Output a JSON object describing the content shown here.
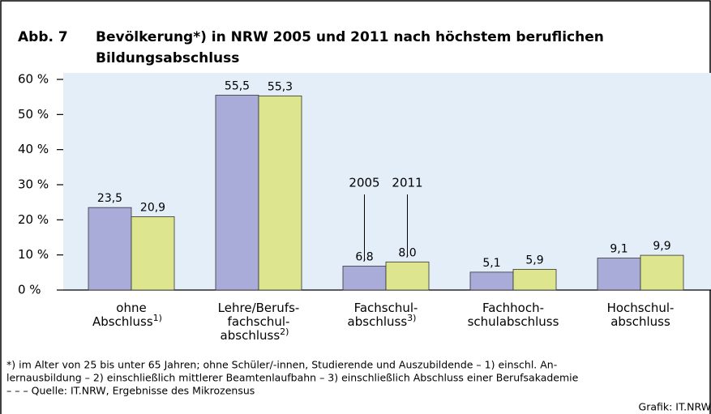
{
  "chart_data": {
    "type": "bar",
    "figure_label": "Abb. 7",
    "title_lines": [
      "Bevölkerung*) in NRW 2005 und 2011 nach höchstem beruflichen",
      "Bildungsabschluss"
    ],
    "categories": [
      {
        "lines": [
          "ohne",
          "Abschluss"
        ],
        "note": "1)"
      },
      {
        "lines": [
          "Lehre/Berufs-",
          "fachschul-",
          "abschluss"
        ],
        "note": "2)"
      },
      {
        "lines": [
          "Fachschul-",
          "abschluss"
        ],
        "note": "3)"
      },
      {
        "lines": [
          "Fachhoch-",
          "schulabschluss"
        ]
      },
      {
        "lines": [
          "Hochschul-",
          "abschluss"
        ]
      }
    ],
    "series": [
      {
        "name": "2005",
        "color": "#a9acd8",
        "values": [
          23.5,
          55.5,
          6.8,
          5.1,
          9.1
        ],
        "value_labels": [
          "23,5",
          "55,5",
          "6,8",
          "5,1",
          "9,1"
        ]
      },
      {
        "name": "2011",
        "color": "#dde68e",
        "values": [
          20.9,
          55.3,
          8.0,
          5.9,
          9.9
        ],
        "value_labels": [
          "20,9",
          "55,3",
          "8,0",
          "5,9",
          "9,9"
        ]
      }
    ],
    "ylim": [
      0,
      60
    ],
    "yticks": [
      {
        "value": 0,
        "label": "0 %"
      },
      {
        "value": 10,
        "label": "10 %"
      },
      {
        "value": 20,
        "label": "20 %"
      },
      {
        "value": 30,
        "label": "30 %"
      },
      {
        "value": 40,
        "label": "40 %"
      },
      {
        "value": 50,
        "label": "50 %"
      },
      {
        "value": 60,
        "label": "60 %"
      }
    ],
    "footnotes": [
      "*) im Alter von 25 bis unter 65 Jahren; ohne Schüler/-innen, Studierende und Auszubildende – 1) einschl. An-",
      "lernausbildung – 2) einschließlich mittlerer Beamtenlaufbahn – 3) einschließlich Abschluss einer Berufsakademie",
      "– – – Quelle: IT.NRW, Ergebnisse des Mikrozensus"
    ],
    "credit": "Grafik: IT.NRW"
  }
}
